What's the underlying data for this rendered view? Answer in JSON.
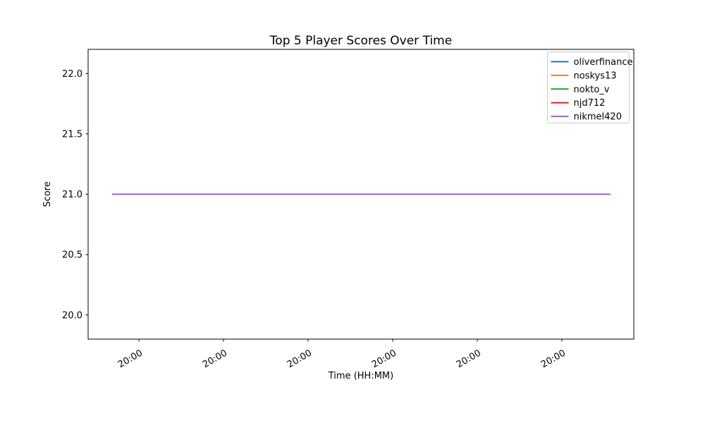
{
  "figure": {
    "background": "#ffffff"
  },
  "chart_data": {
    "type": "line",
    "title": "Top 5 Player Scores Over Time",
    "xlabel": "Time (HH:MM)",
    "ylabel": "Score",
    "ylim": [
      19.8,
      22.2
    ],
    "yticks": [
      20.0,
      20.5,
      21.0,
      21.5,
      22.0
    ],
    "ytick_labels": [
      "20.0",
      "20.5",
      "21.0",
      "21.5",
      "22.0"
    ],
    "xtick_labels": [
      "20:00",
      "20:00",
      "20:00",
      "20:00",
      "20:00",
      "20:00"
    ],
    "xtick_rotation_deg": 30,
    "grid": false,
    "legend_position": "upper right",
    "series": [
      {
        "name": "oliverfinance",
        "color": "#1f77b4",
        "values": [
          21,
          21
        ]
      },
      {
        "name": "noskys13",
        "color": "#ff7f0e",
        "values": [
          21,
          21
        ]
      },
      {
        "name": "nokto_v",
        "color": "#2ca02c",
        "values": [
          21,
          21
        ]
      },
      {
        "name": "njd712",
        "color": "#d62728",
        "values": [
          21,
          21
        ]
      },
      {
        "name": "nikmel420",
        "color": "#9467bd",
        "values": [
          21,
          21
        ]
      }
    ],
    "note": "All five player series are constant at score 21; the lines overlap exactly (top-drawn purple line visible)."
  },
  "colors": {
    "spine": "#000000",
    "tick_text": "#000000",
    "legend_border": "#cccccc",
    "legend_background": "#ffffff"
  }
}
